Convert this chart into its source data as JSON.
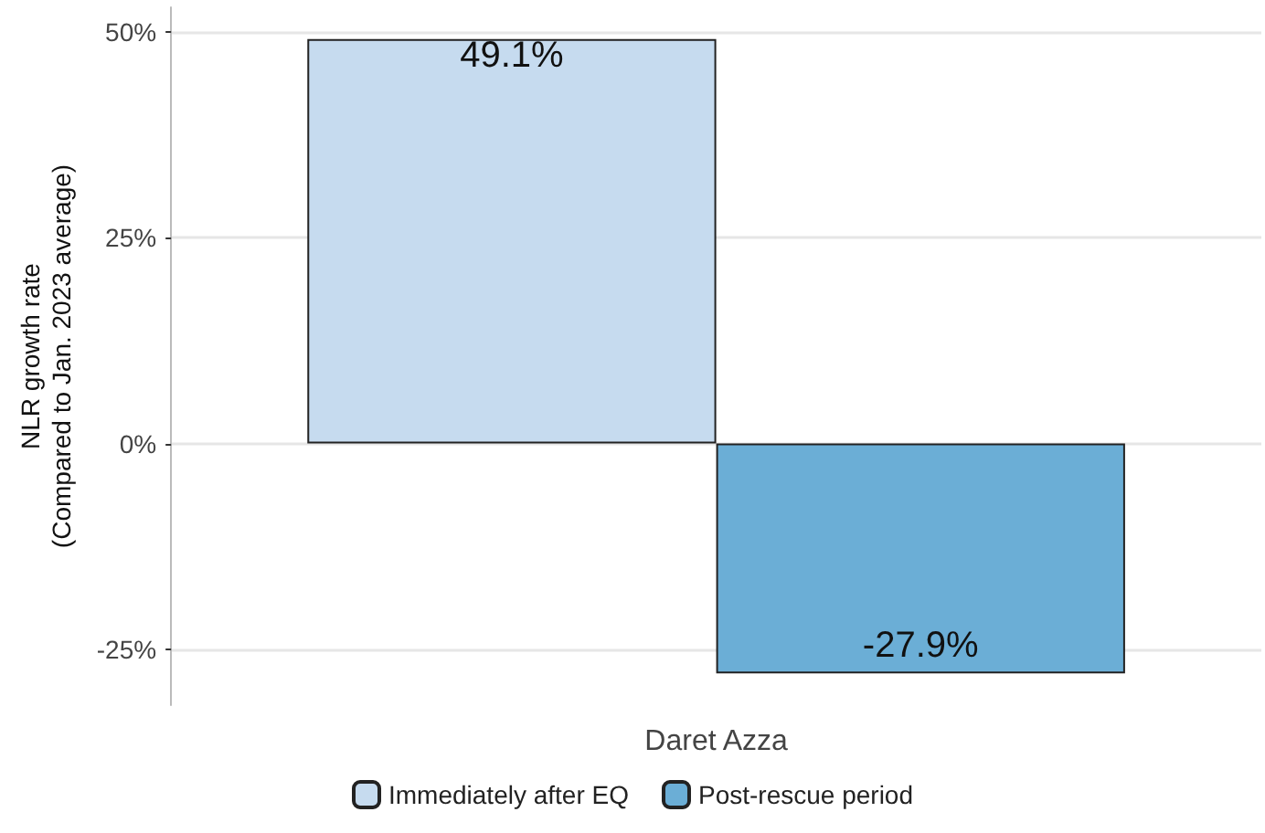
{
  "chart_data": {
    "type": "bar",
    "ylabel": "NLR growth rate\n(Compared to Jan. 2023 average)",
    "categories": [
      "Daret Azza"
    ],
    "series": [
      {
        "name": "Immediately after EQ",
        "color": "#c6dbef",
        "values": [
          49.1
        ],
        "value_labels": [
          "49.1%"
        ]
      },
      {
        "name": "Post-rescue period",
        "color": "#6baed6",
        "values": [
          -27.9
        ],
        "value_labels": [
          "-27.9%"
        ]
      }
    ],
    "ylim": [
      -31.75,
      52.95
    ],
    "yticks": [
      {
        "value": -25,
        "label": "-25%"
      },
      {
        "value": 0,
        "label": "0%"
      },
      {
        "value": 25,
        "label": "25%"
      },
      {
        "value": 50,
        "label": "50%"
      }
    ],
    "grid": "y",
    "legend": "bottom"
  }
}
